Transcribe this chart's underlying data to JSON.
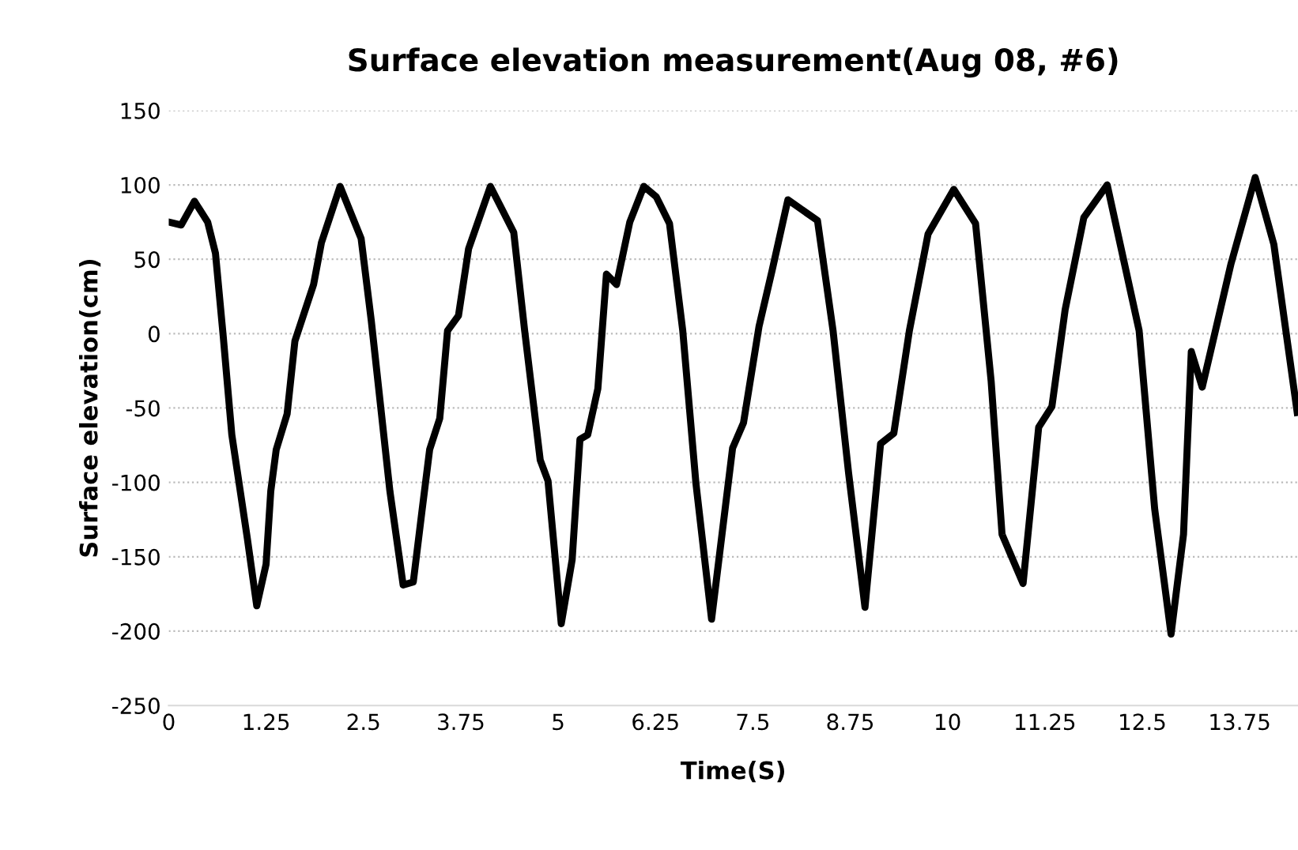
{
  "chart_data": {
    "type": "line",
    "title": "Surface elevation measurement(Aug 08, #6)",
    "xlabel": "Time(S)",
    "ylabel": "Surface elevation(cm)",
    "series": [
      {
        "color": "#000000",
        "x": [
          0,
          0.16,
          0.33,
          0.5,
          0.6,
          0.7,
          0.81,
          1.01,
          1.13,
          1.25,
          1.31,
          1.38,
          1.52,
          1.62,
          1.86,
          1.96,
          2.2,
          2.47,
          2.6,
          2.84,
          3.01,
          3.14,
          3.25,
          3.35,
          3.48,
          3.58,
          3.72,
          3.85,
          4.13,
          4.43,
          4.57,
          4.77,
          4.87,
          5.04,
          5.18,
          5.28,
          5.38,
          5.51,
          5.62,
          5.75,
          5.92,
          6.1,
          6.26,
          6.43,
          6.6,
          6.77,
          6.97,
          7.24,
          7.38,
          7.58,
          7.75,
          7.95,
          8.33,
          8.53,
          8.73,
          8.94,
          9.14,
          9.31,
          9.51,
          9.75,
          10.08,
          10.36,
          10.56,
          10.7,
          10.97,
          11.17,
          11.34,
          11.51,
          11.75,
          12.05,
          12.46,
          12.66,
          12.87,
          13.03,
          13.13,
          13.27,
          13.44,
          13.64,
          13.95,
          14.19,
          14.49
        ],
        "values": [
          75,
          73,
          89,
          75,
          54,
          -2,
          -68,
          -138,
          -183,
          -155,
          -106,
          -78,
          -54,
          -5,
          33,
          61,
          99,
          64,
          9,
          -106,
          -169,
          -167,
          -120,
          -78,
          -57,
          2,
          12,
          57,
          99,
          68,
          2,
          -85,
          -99,
          -195,
          -152,
          -71,
          -68,
          -37,
          40,
          33,
          75,
          99,
          92,
          74,
          2,
          -101,
          -192,
          -77,
          -60,
          5,
          43,
          90,
          76,
          2,
          -94,
          -184,
          -74,
          -67,
          2,
          67,
          97,
          74,
          -32,
          -135,
          -168,
          -63,
          -49,
          16,
          78,
          100,
          2,
          -118,
          -202,
          -135,
          -12,
          -36,
          2,
          47,
          105,
          60,
          -53
        ]
      }
    ],
    "xlim": [
      0,
      14.5
    ],
    "xticks": [
      0,
      1.25,
      2.5,
      3.75,
      5,
      6.25,
      7.5,
      8.75,
      10,
      11.25,
      12.5,
      13.75
    ],
    "ylim": [
      -250,
      150
    ],
    "yticks": [
      -250,
      -200,
      -150,
      -100,
      -50,
      0,
      50,
      100,
      150
    ],
    "grid": "y",
    "line_style": "solid",
    "marker": "none",
    "legend": false
  }
}
